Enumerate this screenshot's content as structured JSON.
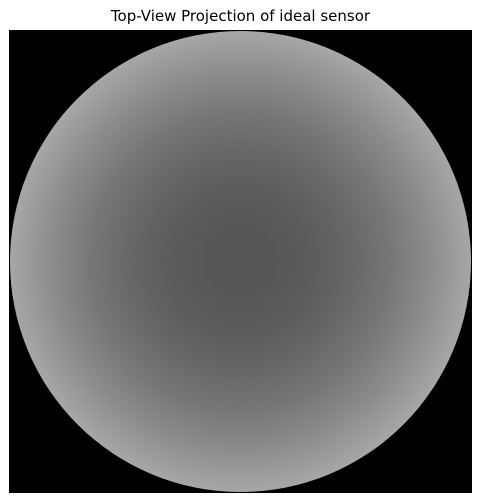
{
  "figure": {
    "title": "Top-View Projection of ideal sensor"
  },
  "image": {
    "background_color": "#000000",
    "disc_center_color": "#555555",
    "disc_edge_color": "#ffffff",
    "colormap": "gray",
    "shape": "circular"
  }
}
